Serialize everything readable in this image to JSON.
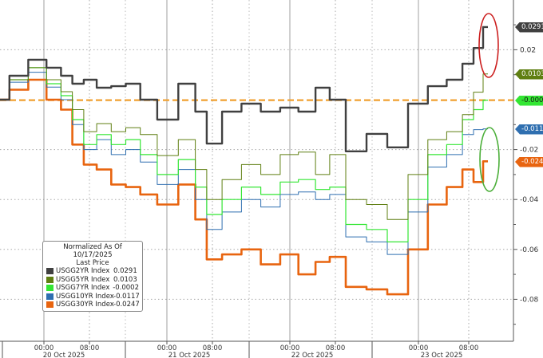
{
  "chart_data": {
    "type": "line",
    "title": "",
    "xlabel": "",
    "ylabel": "",
    "ylim": [
      -0.097,
      0.04
    ],
    "grid": true,
    "legend_placement": "bottom-left",
    "legend_title": "Normalized As Of 10/17/2025",
    "legend_subtitle": "Last Price",
    "y_ticks": [
      "0.02",
      "-0.02",
      "-0.04",
      "-0.06",
      "-0.08"
    ],
    "y_tick_values": [
      0.02,
      -0.02,
      -0.04,
      -0.06,
      -0.08
    ],
    "x_ticks": [
      {
        "time": "2025-10-20T00:00",
        "label": "00:00"
      },
      {
        "time": "2025-10-20T08:00",
        "label": "08:00"
      },
      {
        "time": "2025-10-21T00:00",
        "label": "00:00"
      },
      {
        "time": "2025-10-21T08:00",
        "label": "08:00"
      },
      {
        "time": "2025-10-22T00:00",
        "label": "00:00"
      },
      {
        "time": "2025-10-22T08:00",
        "label": "08:00"
      },
      {
        "time": "2025-10-23T00:00",
        "label": "00:00"
      },
      {
        "time": "2025-10-23T08:00",
        "label": "08:00"
      }
    ],
    "x_day_labels": [
      "20 Oct 2025",
      "21 Oct 2025",
      "22 Oct 2025",
      "23 Oct 2025"
    ],
    "x": [
      "2025-10-19T17:00",
      "2025-10-19T20:00",
      "2025-10-19T23:00",
      "2025-10-20T02:00",
      "2025-10-20T04:00",
      "2025-10-20T06:00",
      "2025-10-20T08:00",
      "2025-10-20T11:00",
      "2025-10-20T14:00",
      "2025-10-20T17:00",
      "2025-10-20T20:00",
      "2025-10-21T00:00",
      "2025-10-21T04:00",
      "2025-10-21T06:00",
      "2025-10-21T08:00",
      "2025-10-21T12:00",
      "2025-10-21T16:00",
      "2025-10-21T20:00",
      "2025-10-22T00:00",
      "2025-10-22T03:00",
      "2025-10-22T06:00",
      "2025-10-22T08:00",
      "2025-10-22T12:00",
      "2025-10-22T16:00",
      "2025-10-22T20:00",
      "2025-10-23T00:00",
      "2025-10-23T03:00",
      "2025-10-23T06:00",
      "2025-10-23T08:00",
      "2025-10-23T10:00",
      "2025-10-23T12:00"
    ],
    "series": [
      {
        "name": "USGG2YR Index",
        "last": "0.0291",
        "color": "#404040",
        "values": [
          0,
          0.0096,
          0.016,
          0.0128,
          0.0096,
          0.0064,
          0.008,
          0.0048,
          0.0054,
          0.0064,
          0,
          -0.008,
          0.0064,
          -0.0048,
          -0.0176,
          -0.0048,
          -0.0016,
          -0.0048,
          -0.0032,
          -0.0048,
          0.0048,
          0,
          -0.0207,
          -0.0137,
          -0.0191,
          -0.0016,
          0.0054,
          0.008,
          0.0144,
          0.0207,
          0.0291
        ]
      },
      {
        "name": "USGG5YR Index",
        "last": "0.0103",
        "color": "#5f7f12",
        "values": [
          0,
          0.008,
          0.0128,
          0.008,
          0.0032,
          -0.004,
          -0.0128,
          -0.0096,
          -0.0128,
          -0.0112,
          -0.014,
          -0.0224,
          -0.016,
          -0.028,
          -0.04,
          -0.032,
          -0.026,
          -0.03,
          -0.022,
          -0.021,
          -0.03,
          -0.022,
          -0.04,
          -0.042,
          -0.048,
          -0.03,
          -0.016,
          -0.0128,
          -0.006,
          0.003,
          0.0103
        ]
      },
      {
        "name": "USGG7YR Index",
        "last": "-0.0002",
        "color": "#33e633",
        "values": [
          0,
          0.008,
          0.0128,
          0.0064,
          0.0016,
          -0.008,
          -0.018,
          -0.014,
          -0.018,
          -0.016,
          -0.022,
          -0.03,
          -0.024,
          -0.035,
          -0.046,
          -0.04,
          -0.035,
          -0.038,
          -0.033,
          -0.032,
          -0.036,
          -0.035,
          -0.05,
          -0.052,
          -0.057,
          -0.04,
          -0.022,
          -0.018,
          -0.008,
          -0.004,
          -0.0002
        ]
      },
      {
        "name": "USGG10YR Index",
        "last": "-0.0117",
        "color": "#2f6fb0",
        "values": [
          0,
          0.007,
          0.011,
          0.005,
          0,
          -0.01,
          -0.02,
          -0.016,
          -0.022,
          -0.02,
          -0.025,
          -0.034,
          -0.028,
          -0.04,
          -0.052,
          -0.045,
          -0.04,
          -0.043,
          -0.038,
          -0.037,
          -0.04,
          -0.038,
          -0.055,
          -0.057,
          -0.062,
          -0.045,
          -0.027,
          -0.022,
          -0.014,
          -0.012,
          -0.0117
        ]
      },
      {
        "name": "USGG30YR Index",
        "last": "-0.0247",
        "color": "#e8640f",
        "values": [
          0,
          0.004,
          0.008,
          0,
          -0.004,
          -0.018,
          -0.026,
          -0.028,
          -0.034,
          -0.035,
          -0.038,
          -0.042,
          -0.034,
          -0.048,
          -0.064,
          -0.062,
          -0.06,
          -0.066,
          -0.062,
          -0.07,
          -0.065,
          -0.063,
          -0.075,
          -0.076,
          -0.078,
          -0.06,
          -0.042,
          -0.035,
          -0.028,
          -0.033,
          -0.0247
        ]
      }
    ],
    "reference_line": {
      "value": -0.0002,
      "color": "#f0a030",
      "style": "dashed"
    },
    "annotations": [
      {
        "shape": "ellipse",
        "color": "#cc1f1f",
        "around": "USGG2YR Index"
      },
      {
        "shape": "ellipse",
        "color": "#4caf3a",
        "around": "USGG10YR Index / USGG30YR Index"
      }
    ]
  }
}
